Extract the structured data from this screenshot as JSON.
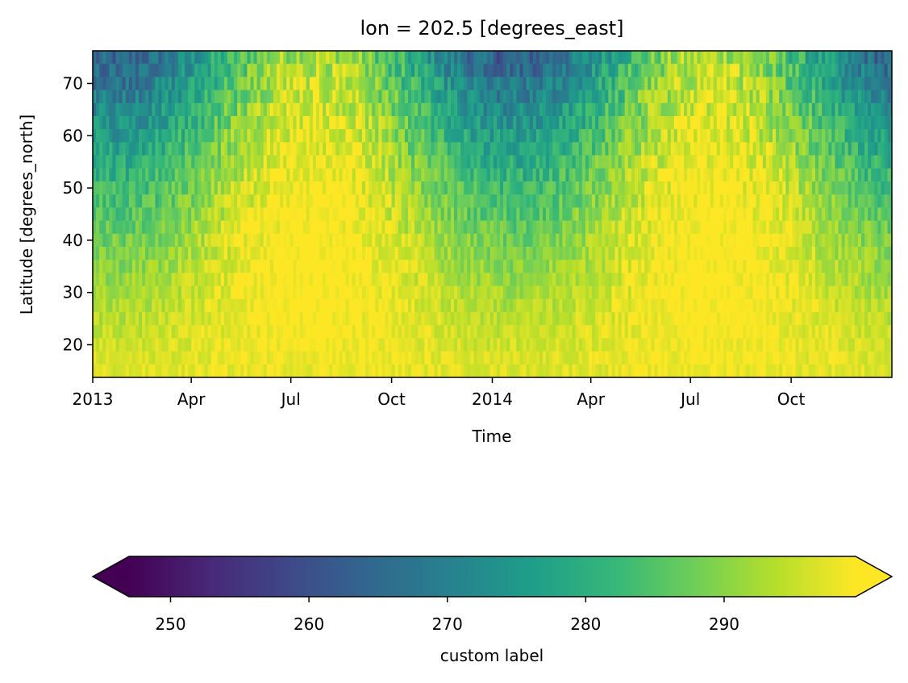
{
  "chart_data": {
    "type": "heatmap",
    "title": "lon = 202.5 [degrees_east]",
    "xlabel": "Time",
    "ylabel": "Latitude [degrees_north]",
    "x_range": [
      "2013-01-01",
      "2014-12-31"
    ],
    "y_range": [
      13.75,
      76.25
    ],
    "xticks": [
      {
        "label": "2013",
        "date": "2013-01-01"
      },
      {
        "label": "Apr",
        "date": "2013-04-01"
      },
      {
        "label": "Jul",
        "date": "2013-07-01"
      },
      {
        "label": "Oct",
        "date": "2013-10-01"
      },
      {
        "label": "2014",
        "date": "2014-01-01"
      },
      {
        "label": "Apr",
        "date": "2014-04-01"
      },
      {
        "label": "Jul",
        "date": "2014-07-01"
      },
      {
        "label": "Oct",
        "date": "2014-10-01"
      }
    ],
    "yticks": [
      20,
      30,
      40,
      50,
      60,
      70
    ],
    "latitudes": [
      75,
      72.5,
      70,
      67.5,
      65,
      62.5,
      60,
      57.5,
      55,
      52.5,
      50,
      47.5,
      45,
      42.5,
      40,
      37.5,
      35,
      32.5,
      30,
      27.5,
      25,
      22.5,
      20,
      17.5,
      15
    ],
    "colormap": [
      "#440154",
      "#482878",
      "#3e4989",
      "#31688e",
      "#26828e",
      "#1f9e89",
      "#35b779",
      "#6ece58",
      "#b5de2b",
      "#fde725"
    ],
    "colorbar": {
      "label": "custom label",
      "vmin": 245,
      "vmax": 300,
      "ticks": [
        250,
        260,
        270,
        280,
        290
      ],
      "extend": "both",
      "orientation": "horizontal"
    }
  }
}
